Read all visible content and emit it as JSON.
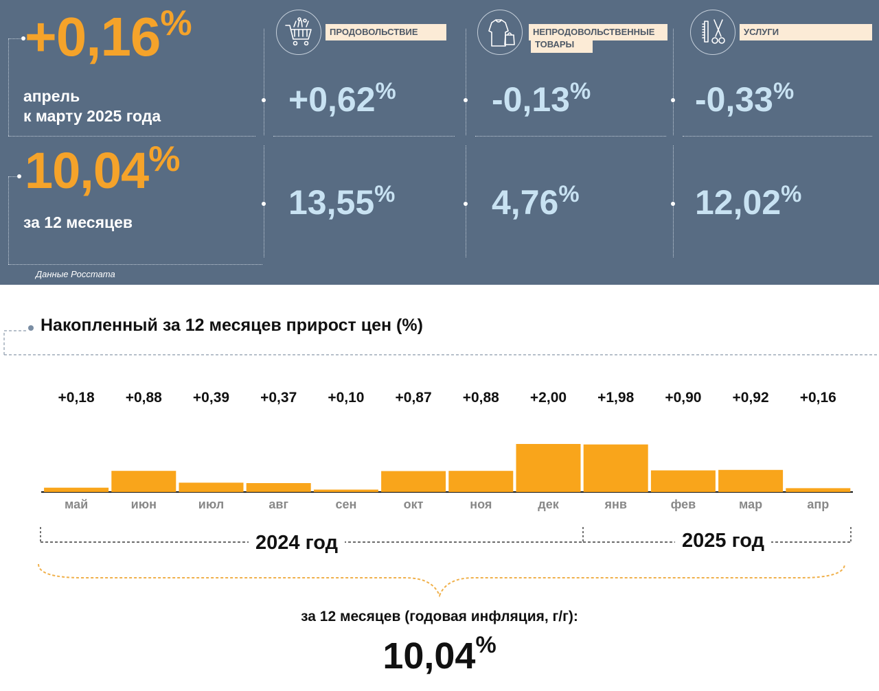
{
  "summary": {
    "monthly": {
      "value": "+0,16",
      "unit": "%",
      "label_line1": "апрель",
      "label_line2": "к марту 2025 года"
    },
    "annual": {
      "value": "10,04",
      "unit": "%",
      "label": "за 12 месяцев"
    },
    "source": "Данные Росстата"
  },
  "categories": [
    {
      "name_line1": "ПРОДОВОЛЬСТВИЕ",
      "name_line2": "",
      "icon": "shopping-cart-icon",
      "monthly": "+0,62",
      "annual": "13,55",
      "unit": "%"
    },
    {
      "name_line1": "НЕПРОДОВОЛЬСТВЕННЫЕ",
      "name_line2": "ТОВАРЫ",
      "icon": "clothes-bag-icon",
      "monthly": "-0,13",
      "annual": "4,76",
      "unit": "%"
    },
    {
      "name_line1": "УСЛУГИ",
      "name_line2": "",
      "icon": "scissors-comb-icon",
      "monthly": "-0,33",
      "annual": "12,02",
      "unit": "%"
    }
  ],
  "chart_data": {
    "type": "bar",
    "title": "Накопленный за 12 месяцев прирост цен (%)",
    "categories": [
      "май",
      "июн",
      "июл",
      "авг",
      "сен",
      "окт",
      "ноя",
      "дек",
      "янв",
      "фев",
      "мар",
      "апр"
    ],
    "values": [
      0.18,
      0.88,
      0.39,
      0.37,
      0.1,
      0.87,
      0.88,
      2.0,
      1.98,
      0.9,
      0.92,
      0.16
    ],
    "data_labels": [
      "+0,18",
      "+0,88",
      "+0,39",
      "+0,37",
      "+0,10",
      "+0,87",
      "+0,88",
      "+2,00",
      "+1,98",
      "+0,90",
      "+0,92",
      "+0,16"
    ],
    "bar_color": "#f9a51b",
    "year_groups": [
      {
        "label": "2024 год",
        "months": 8
      },
      {
        "label": "2025 год",
        "months": 4
      }
    ],
    "total_caption": "за 12 месяцев (годовая инфляция, г/г):",
    "total_value": "10,04",
    "total_unit": "%"
  },
  "colors": {
    "panel_bg": "#586c83",
    "accent_orange": "#f5a32a",
    "value_light": "#c8e2f2",
    "label_bg": "#fcebd6"
  }
}
